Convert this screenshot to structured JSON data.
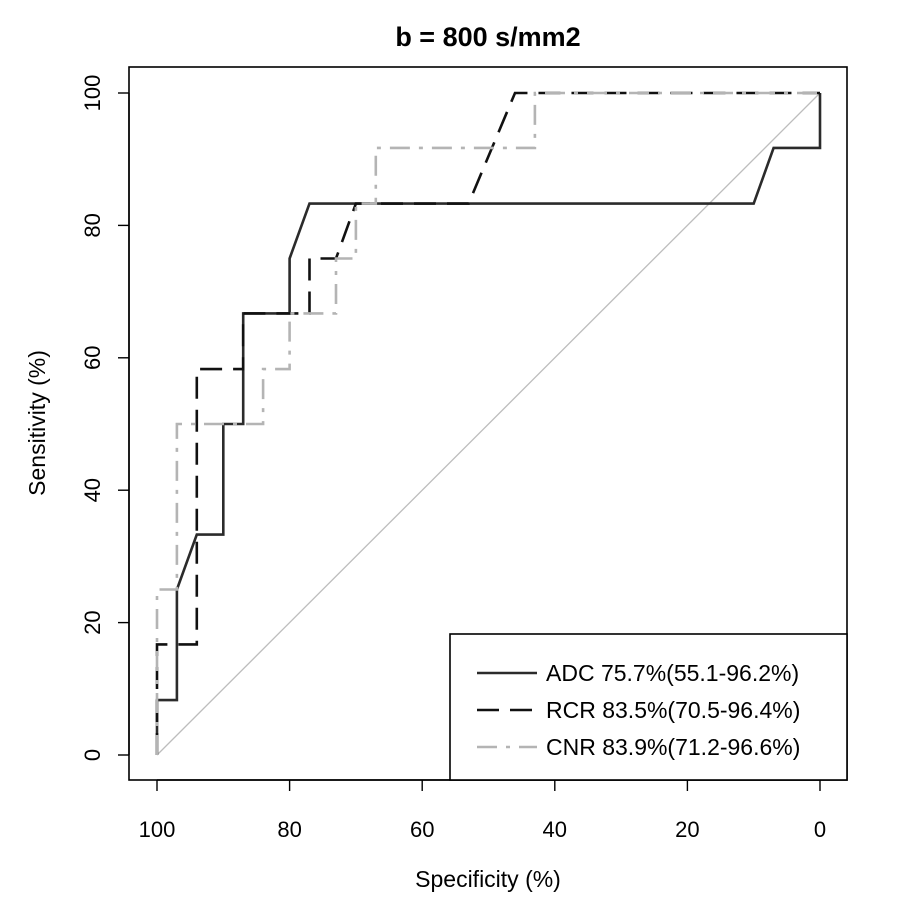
{
  "chart_data": {
    "type": "line",
    "title": "b = 800 s/mm2",
    "xlabel": "Specificity (%)",
    "ylabel": "Sensitivity (%)",
    "xlim": [
      100,
      0
    ],
    "ylim": [
      0,
      100
    ],
    "x_reversed": true,
    "x_ticks": [
      "100",
      "80",
      "60",
      "40",
      "20",
      "0"
    ],
    "y_ticks": [
      "0",
      "20",
      "40",
      "60",
      "80",
      "100"
    ],
    "grid": false,
    "legend_position": "bottom-right",
    "reference_line": {
      "x": [
        100,
        0
      ],
      "y": [
        0,
        100
      ],
      "color": "#bdbdbd"
    },
    "series": [
      {
        "name": "ADC",
        "legend_label": "ADC 75.7%(55.1-96.2%)",
        "line_style": "solid",
        "color": "#2b2b2b",
        "x": [
          100,
          100,
          97,
          97,
          94,
          90,
          90,
          87,
          87,
          80,
          80,
          77,
          77,
          53,
          10,
          7,
          0,
          0
        ],
        "y": [
          0,
          8.3,
          8.3,
          25,
          33.3,
          33.3,
          50,
          50,
          66.7,
          66.7,
          75,
          83.3,
          83.3,
          83.3,
          83.3,
          91.7,
          91.7,
          100
        ]
      },
      {
        "name": "RCR",
        "legend_label": "RCR 83.5%(70.5-96.4%)",
        "line_style": "dashed",
        "color": "#111111",
        "x": [
          100,
          100,
          100,
          97,
          94,
          94,
          94,
          90,
          87,
          87,
          77,
          77,
          73,
          70,
          53,
          46,
          0
        ],
        "y": [
          0,
          8.3,
          16.7,
          16.7,
          16.7,
          33.3,
          58.3,
          58.3,
          58.3,
          66.7,
          66.7,
          75,
          75,
          83.3,
          83.3,
          100,
          100
        ]
      },
      {
        "name": "CNR",
        "legend_label": "CNR 83.9%(71.2-96.6%)",
        "line_style": "dashdot",
        "color": "#b4b4b4",
        "x": [
          100,
          100,
          97,
          97,
          84,
          84,
          80,
          80,
          73,
          73,
          70,
          70,
          67,
          67,
          43,
          43,
          0
        ],
        "y": [
          0,
          25,
          25,
          50,
          50,
          58.3,
          58.3,
          66.7,
          66.7,
          75,
          75,
          83.3,
          83.3,
          91.7,
          91.7,
          100,
          100
        ]
      }
    ]
  }
}
